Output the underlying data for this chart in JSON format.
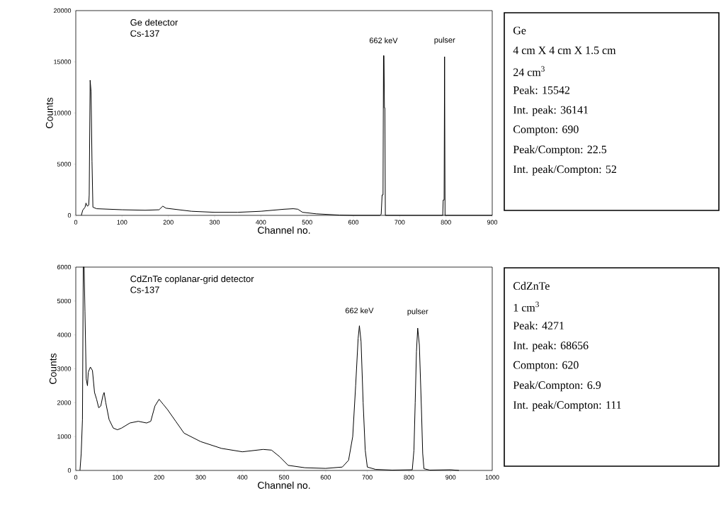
{
  "chart_data": [
    {
      "type": "line",
      "xlabel": "Channel no.",
      "ylabel": "Counts",
      "xlim": [
        0,
        900
      ],
      "ylim": [
        0,
        20000
      ],
      "xticks": [
        0,
        100,
        200,
        300,
        400,
        500,
        600,
        700,
        800,
        900
      ],
      "yticks": [
        0,
        5000,
        10000,
        15000,
        20000
      ],
      "annotations": [
        "Ge detector",
        "Cs-137",
        {
          "text": "662 keV",
          "x": 665,
          "y": 15600
        },
        {
          "text": "pulser",
          "x": 797,
          "y": 15500
        }
      ],
      "x": [
        12,
        15,
        20,
        22,
        25,
        28,
        29,
        31,
        33,
        35,
        37,
        45,
        100,
        150,
        180,
        188,
        195,
        250,
        300,
        350,
        400,
        450,
        470,
        480,
        490,
        520,
        570,
        600,
        657,
        660,
        662,
        664,
        665,
        666,
        667,
        668,
        669,
        793,
        794,
        796,
        797,
        798,
        900
      ],
      "series": [
        {
          "color": "#000000",
          "values": [
            0,
            500,
            800,
            1200,
            900,
            1000,
            2000,
            13200,
            12100,
            5300,
            800,
            650,
            550,
            500,
            550,
            900,
            700,
            400,
            300,
            300,
            400,
            600,
            650,
            600,
            300,
            150,
            30,
            0,
            0,
            100,
            2000,
            2000,
            15600,
            15600,
            10500,
            10500,
            0,
            0,
            1500,
            1500,
            15500,
            0,
            0
          ]
        }
      ]
    },
    {
      "type": "other",
      "annotations": [
        "Ge",
        "4 cm X 4 cm X 1.5 cm",
        "24 cm$^{3}$",
        "Peak: 15542",
        "Int. peak: 36141",
        "Compton: 690",
        "Peak/Compton: 22.5",
        "Int. peak/Compton: 52"
      ]
    },
    {
      "type": "line",
      "xlabel": "Channel no.",
      "ylabel": "Counts",
      "xlim": [
        0,
        1000
      ],
      "ylim": [
        0,
        6000
      ],
      "xticks": [
        0,
        100,
        200,
        300,
        400,
        500,
        600,
        700,
        800,
        900,
        1000
      ],
      "yticks": [
        0,
        1000,
        2000,
        3000,
        4000,
        5000,
        6000
      ],
      "annotations": [
        "CdZnTe coplanar-grid detector",
        "Cs-137",
        {
          "text": "662 keV",
          "x": 681,
          "y": 4270
        },
        {
          "text": "pulser",
          "x": 821,
          "y": 4200
        }
      ],
      "x": [
        10,
        13,
        16,
        18,
        20,
        22,
        25,
        28,
        30,
        35,
        40,
        45,
        50,
        55,
        60,
        65,
        68,
        72,
        80,
        90,
        100,
        110,
        130,
        150,
        170,
        180,
        190,
        200,
        210,
        220,
        240,
        260,
        300,
        350,
        400,
        450,
        470,
        490,
        510,
        550,
        600,
        640,
        655,
        665,
        672,
        678,
        681,
        685,
        690,
        695,
        700,
        720,
        760,
        808,
        812,
        815,
        818,
        821,
        825,
        830,
        833,
        836,
        850,
        900,
        920
      ],
      "series": [
        {
          "color": "#000000",
          "values": [
            0,
            500,
            1500,
            6000,
            6000,
            4700,
            2700,
            2500,
            2900,
            3050,
            2950,
            2300,
            2100,
            1850,
            1900,
            2200,
            2300,
            2000,
            1500,
            1250,
            1200,
            1250,
            1400,
            1450,
            1400,
            1450,
            1900,
            2100,
            1950,
            1800,
            1450,
            1100,
            850,
            650,
            550,
            620,
            600,
            400,
            150,
            80,
            60,
            100,
            300,
            1000,
            2500,
            3900,
            4270,
            3800,
            2000,
            600,
            100,
            30,
            10,
            20,
            600,
            2000,
            3500,
            4200,
            3700,
            1800,
            500,
            50,
            10,
            20,
            0
          ]
        }
      ]
    },
    {
      "type": "other",
      "annotations": [
        "CdZnTe",
        "1 cm$^{3}$",
        "Peak: 4271",
        "Int. peak: 68656",
        "Compton: 620",
        "Peak/Compton: 6.9",
        "Int. peak/Compton: 111"
      ]
    }
  ]
}
